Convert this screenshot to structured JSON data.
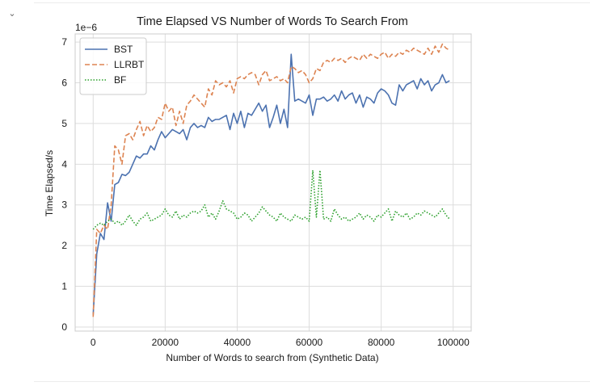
{
  "cell": {
    "collapse_icon": "chevron-down-icon",
    "collapse_glyph": "⌄"
  },
  "chart_data": {
    "type": "line",
    "title": "Time Elapsed VS Number of Words To Search From",
    "xlabel": "Number of Words to search from (Synthetic Data)",
    "ylabel": "Time Elapsed/s",
    "y_multiplier_label": "1e−6",
    "xlim": [
      -5000,
      105000
    ],
    "ylim": [
      -0.1,
      7.2
    ],
    "xticks": [
      0,
      20000,
      40000,
      60000,
      80000,
      100000
    ],
    "xtick_labels": [
      "0",
      "20000",
      "40000",
      "60000",
      "80000",
      "100000"
    ],
    "yticks": [
      0,
      1,
      2,
      3,
      4,
      5,
      6,
      7
    ],
    "ytick_labels": [
      "0",
      "1",
      "2",
      "3",
      "4",
      "5",
      "6",
      "7"
    ],
    "grid": true,
    "legend": "top-left",
    "x": [
      0,
      1000,
      2000,
      3000,
      4000,
      5000,
      6000,
      7000,
      8000,
      9000,
      10000,
      11000,
      12000,
      13000,
      14000,
      15000,
      16000,
      17000,
      18000,
      19000,
      20000,
      21000,
      22000,
      23000,
      24000,
      25000,
      26000,
      27000,
      28000,
      29000,
      30000,
      31000,
      32000,
      33000,
      34000,
      35000,
      36000,
      37000,
      38000,
      39000,
      40000,
      41000,
      42000,
      43000,
      44000,
      45000,
      46000,
      47000,
      48000,
      49000,
      50000,
      51000,
      52000,
      53000,
      54000,
      55000,
      56000,
      57000,
      58000,
      59000,
      60000,
      61000,
      62000,
      63000,
      64000,
      65000,
      66000,
      67000,
      68000,
      69000,
      70000,
      71000,
      72000,
      73000,
      74000,
      75000,
      76000,
      77000,
      78000,
      79000,
      80000,
      81000,
      82000,
      83000,
      84000,
      85000,
      86000,
      87000,
      88000,
      89000,
      90000,
      91000,
      92000,
      93000,
      94000,
      95000,
      96000,
      97000,
      98000,
      99000
    ],
    "series": [
      {
        "name": "BST",
        "color": "#4c72b0",
        "style": "solid",
        "values": [
          0.3,
          1.8,
          2.3,
          2.15,
          3.05,
          2.6,
          3.5,
          3.55,
          3.75,
          3.72,
          3.8,
          4.0,
          4.2,
          4.15,
          4.25,
          4.25,
          4.45,
          4.35,
          4.6,
          4.8,
          4.65,
          4.75,
          4.85,
          4.8,
          4.75,
          4.85,
          4.6,
          4.9,
          5.0,
          4.9,
          4.95,
          4.9,
          5.15,
          5.05,
          5.1,
          5.1,
          5.15,
          5.2,
          4.85,
          5.25,
          5.0,
          5.3,
          4.9,
          5.25,
          5.2,
          5.35,
          5.5,
          5.3,
          5.45,
          4.9,
          5.15,
          5.45,
          5.0,
          5.35,
          4.9,
          6.7,
          5.55,
          5.6,
          5.55,
          5.5,
          5.7,
          5.2,
          5.6,
          5.6,
          5.65,
          5.55,
          5.6,
          5.7,
          5.55,
          5.8,
          5.6,
          5.7,
          5.75,
          5.5,
          5.7,
          5.4,
          5.65,
          5.6,
          5.5,
          5.75,
          5.85,
          5.8,
          5.7,
          5.5,
          5.45,
          5.95,
          5.8,
          5.95,
          6.0,
          6.05,
          5.85,
          6.1,
          5.95,
          6.05,
          5.8,
          5.95,
          6.0,
          6.2,
          6.0,
          6.05
        ]
      },
      {
        "name": "LLRBT",
        "color": "#dd8452",
        "style": "dashed",
        "values": [
          0.25,
          2.4,
          2.3,
          2.5,
          2.4,
          3.0,
          4.45,
          4.35,
          4.0,
          4.7,
          4.75,
          4.6,
          4.85,
          5.05,
          4.7,
          4.95,
          4.8,
          4.9,
          5.15,
          5.1,
          5.5,
          5.3,
          5.4,
          4.95,
          5.3,
          5.0,
          5.45,
          5.55,
          5.7,
          5.6,
          5.5,
          5.4,
          5.85,
          5.7,
          6.05,
          5.95,
          6.0,
          5.9,
          6.05,
          5.75,
          6.1,
          6.15,
          6.1,
          6.2,
          6.25,
          6.2,
          5.95,
          6.2,
          6.3,
          6.05,
          6.1,
          6.15,
          6.05,
          6.1,
          6.0,
          6.4,
          6.35,
          6.25,
          6.3,
          6.2,
          6.0,
          6.1,
          6.35,
          6.3,
          6.5,
          6.55,
          6.5,
          6.6,
          6.55,
          6.6,
          6.5,
          6.6,
          6.65,
          6.6,
          6.55,
          6.7,
          6.6,
          6.7,
          6.65,
          6.6,
          6.7,
          6.75,
          6.6,
          6.7,
          6.65,
          6.75,
          6.7,
          6.8,
          6.75,
          6.85,
          6.8,
          6.75,
          6.7,
          6.85,
          6.7,
          6.9,
          6.75,
          6.95,
          6.85,
          6.8
        ]
      },
      {
        "name": "BF",
        "color": "#2ca02c",
        "style": "dotted",
        "values": [
          2.4,
          2.5,
          2.55,
          2.5,
          2.6,
          2.65,
          2.55,
          2.6,
          2.5,
          2.6,
          2.75,
          2.6,
          2.5,
          2.65,
          2.7,
          2.8,
          2.6,
          2.65,
          2.7,
          2.75,
          2.9,
          2.75,
          2.7,
          2.85,
          2.65,
          2.75,
          2.7,
          2.8,
          2.85,
          2.8,
          2.85,
          3.0,
          2.7,
          2.8,
          2.65,
          2.85,
          3.1,
          2.9,
          2.85,
          2.8,
          2.65,
          2.7,
          2.8,
          2.75,
          2.6,
          2.7,
          2.8,
          2.95,
          2.85,
          2.75,
          2.7,
          2.6,
          2.8,
          2.7,
          2.65,
          2.6,
          2.75,
          2.7,
          2.65,
          2.7,
          2.6,
          3.85,
          2.7,
          3.85,
          2.65,
          2.7,
          2.6,
          2.9,
          2.75,
          2.65,
          2.7,
          2.6,
          2.65,
          2.7,
          2.8,
          2.65,
          2.75,
          2.7,
          2.6,
          2.75,
          2.7,
          2.8,
          2.9,
          2.6,
          2.85,
          2.75,
          2.7,
          2.8,
          2.65,
          2.7,
          2.8,
          2.75,
          2.85,
          2.8,
          2.75,
          2.7,
          2.8,
          2.9,
          2.75,
          2.65
        ]
      }
    ]
  }
}
